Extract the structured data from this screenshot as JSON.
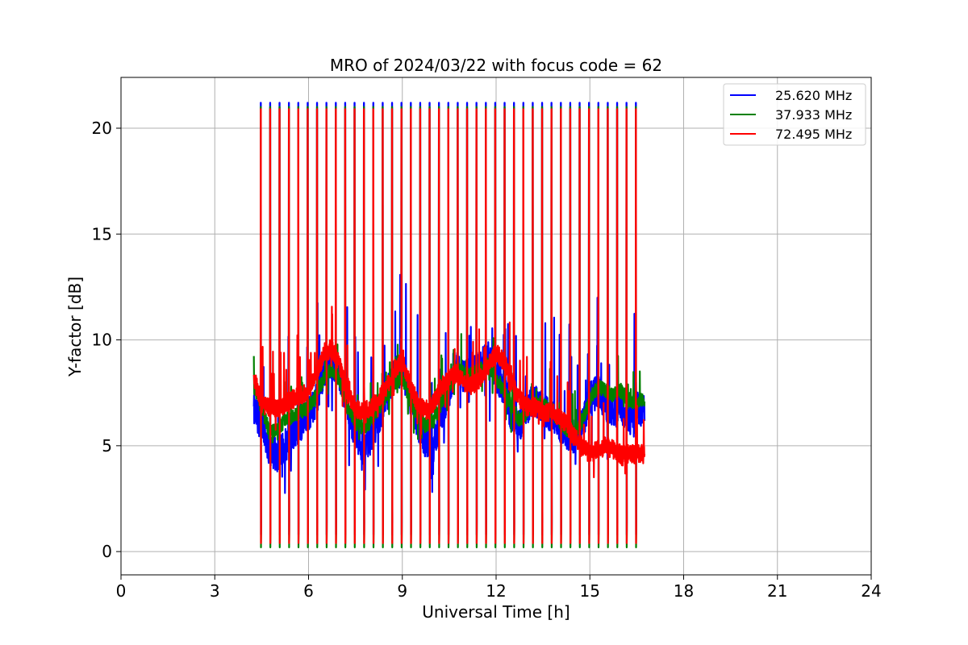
{
  "chart_data": {
    "type": "line",
    "title": "MRO of 2024/03/22 with focus code = 62",
    "xlabel": "Universal Time [h]",
    "ylabel": "Y-factor [dB]",
    "xlim": [
      0,
      24
    ],
    "ylim": [
      -1.1,
      22.4
    ],
    "xticks": [
      0,
      3,
      6,
      9,
      12,
      15,
      18,
      21,
      24
    ],
    "yticks": [
      0,
      5,
      10,
      15,
      20
    ],
    "grid": true,
    "legend_position": "top-right",
    "calibration": {
      "start": 4.47,
      "period": 0.3,
      "count": 41,
      "series_peaks": [
        21.2,
        21.0,
        20.9
      ],
      "series_troughs": [
        0.8,
        0.2,
        0.4
      ]
    },
    "series": [
      {
        "name": "25.620 MHz",
        "color": "#0000ff",
        "x": [
          4.25,
          4.5,
          4.75,
          5.0,
          5.25,
          5.5,
          5.75,
          6.0,
          6.25,
          6.5,
          6.75,
          7.0,
          7.25,
          7.5,
          7.75,
          8.0,
          8.25,
          8.5,
          8.75,
          9.0,
          9.25,
          9.5,
          9.75,
          10.0,
          10.25,
          10.5,
          10.75,
          11.0,
          11.25,
          11.5,
          11.75,
          12.0,
          12.25,
          12.5,
          12.75,
          13.0,
          13.25,
          13.5,
          13.75,
          14.0,
          14.25,
          14.5,
          14.75,
          15.0,
          15.25,
          15.5,
          15.75,
          16.0,
          16.25,
          16.5,
          16.75
        ],
        "y": [
          6.6,
          6.2,
          4.8,
          4.5,
          5.0,
          5.5,
          6.0,
          6.4,
          7.2,
          8.5,
          9.0,
          8.4,
          6.8,
          5.6,
          4.9,
          5.4,
          6.2,
          7.4,
          8.4,
          8.6,
          7.2,
          6.0,
          5.2,
          5.0,
          6.4,
          7.6,
          8.6,
          8.2,
          8.4,
          8.8,
          9.2,
          8.4,
          7.6,
          6.4,
          6.0,
          6.8,
          7.2,
          6.8,
          6.4,
          6.0,
          5.6,
          5.4,
          6.0,
          7.2,
          7.6,
          7.0,
          6.6,
          6.8,
          6.4,
          6.8,
          6.6
        ],
        "noise": 1.6
      },
      {
        "name": "37.933 MHz",
        "color": "#008000",
        "x": [
          4.25,
          4.5,
          4.75,
          5.0,
          5.25,
          5.5,
          5.75,
          6.0,
          6.25,
          6.5,
          6.75,
          7.0,
          7.25,
          7.5,
          7.75,
          8.0,
          8.25,
          8.5,
          8.75,
          9.0,
          9.25,
          9.5,
          9.75,
          10.0,
          10.25,
          10.5,
          10.75,
          11.0,
          11.25,
          11.5,
          11.75,
          12.0,
          12.25,
          12.5,
          12.75,
          13.0,
          13.25,
          13.5,
          13.75,
          14.0,
          14.25,
          14.5,
          14.75,
          15.0,
          15.25,
          15.5,
          15.75,
          16.0,
          16.25,
          16.5,
          16.75
        ],
        "y": [
          7.8,
          6.8,
          5.6,
          5.8,
          6.2,
          6.4,
          6.6,
          6.8,
          7.4,
          8.2,
          8.6,
          8.0,
          6.8,
          6.2,
          5.8,
          6.2,
          6.8,
          7.4,
          8.0,
          8.2,
          7.2,
          6.4,
          6.0,
          6.2,
          7.0,
          7.8,
          8.6,
          8.4,
          8.4,
          8.6,
          8.8,
          8.2,
          7.6,
          6.8,
          6.2,
          6.6,
          7.0,
          7.0,
          6.6,
          6.2,
          5.8,
          5.6,
          6.2,
          7.2,
          7.8,
          7.6,
          7.4,
          7.6,
          7.2,
          7.0,
          7.2
        ],
        "noise": 0.7
      },
      {
        "name": "72.495 MHz",
        "color": "#ff0000",
        "x": [
          4.25,
          4.5,
          4.75,
          5.0,
          5.25,
          5.5,
          5.75,
          6.0,
          6.25,
          6.5,
          6.75,
          7.0,
          7.25,
          7.5,
          7.75,
          8.0,
          8.25,
          8.5,
          8.75,
          9.0,
          9.25,
          9.5,
          9.75,
          10.0,
          10.25,
          10.5,
          10.75,
          11.0,
          11.25,
          11.5,
          11.75,
          12.0,
          12.25,
          12.5,
          12.75,
          13.0,
          13.25,
          13.5,
          13.75,
          14.0,
          14.25,
          14.5,
          14.75,
          15.0,
          15.25,
          15.5,
          15.75,
          16.0,
          16.25,
          16.5,
          16.75
        ],
        "y": [
          8.2,
          7.0,
          6.8,
          6.8,
          7.0,
          7.2,
          7.4,
          7.6,
          8.4,
          9.4,
          9.6,
          8.8,
          7.4,
          6.8,
          6.6,
          6.8,
          7.2,
          7.8,
          8.6,
          9.0,
          7.8,
          7.0,
          6.6,
          7.0,
          7.8,
          8.2,
          8.4,
          8.0,
          7.8,
          8.2,
          8.8,
          9.4,
          9.0,
          8.0,
          7.2,
          6.8,
          6.8,
          6.6,
          6.6,
          6.4,
          6.0,
          5.4,
          5.0,
          4.6,
          4.8,
          5.0,
          4.8,
          4.6,
          4.6,
          4.6,
          4.6
        ],
        "noise": 0.9
      }
    ]
  }
}
